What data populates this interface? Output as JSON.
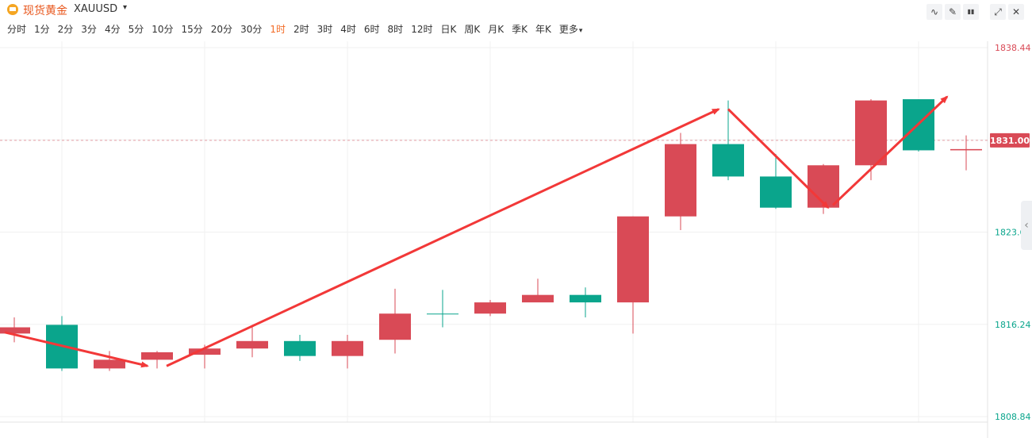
{
  "header": {
    "symbol_name": "现货黄金",
    "symbol_code": "XAUUSD",
    "caret": "▾",
    "icon": "gold-bar-icon"
  },
  "toolbar": {
    "buttons": [
      {
        "name": "indicator-icon",
        "glyph": "∿"
      },
      {
        "name": "draw-tool-icon",
        "glyph": "✎"
      },
      {
        "name": "candle-type-icon",
        "glyph": "▮▮"
      },
      {
        "name": "fullscreen-icon",
        "glyph": "⤢"
      },
      {
        "name": "close-icon",
        "glyph": "✕"
      }
    ]
  },
  "periods": {
    "items": [
      "分时",
      "1分",
      "2分",
      "3分",
      "4分",
      "5分",
      "10分",
      "15分",
      "20分",
      "30分",
      "1时",
      "2时",
      "3时",
      "4时",
      "6时",
      "8时",
      "12时",
      "日K",
      "周K",
      "月K",
      "季K",
      "年K",
      "更多"
    ],
    "active": "1时"
  },
  "chart_data": {
    "type": "candlestick",
    "y_ticks": [
      "1838.44",
      "1823.64",
      "1816.24",
      "1808.84"
    ],
    "ylim": [
      1808.84,
      1838.44
    ],
    "current_price": "1831.00",
    "current_price_value": 1831.0,
    "colors": {
      "up": "#d94a56",
      "down": "#0aa58c",
      "arrow": "#f23838",
      "price_tag": "#d94a56",
      "tick_up": "#d94a56",
      "tick_down": "#0aa58c"
    },
    "candles": [
      {
        "o": 1815.5,
        "c": 1816.0,
        "h": 1816.8,
        "l": 1814.8,
        "dir": "up"
      },
      {
        "o": 1816.2,
        "c": 1812.7,
        "h": 1816.9,
        "l": 1812.5,
        "dir": "down"
      },
      {
        "o": 1812.7,
        "c": 1813.4,
        "h": 1814.1,
        "l": 1812.5,
        "dir": "up"
      },
      {
        "o": 1813.4,
        "c": 1814.0,
        "h": 1814.1,
        "l": 1812.7,
        "dir": "up"
      },
      {
        "o": 1813.8,
        "c": 1814.3,
        "h": 1814.6,
        "l": 1812.7,
        "dir": "up"
      },
      {
        "o": 1814.3,
        "c": 1814.9,
        "h": 1816.0,
        "l": 1813.6,
        "dir": "up"
      },
      {
        "o": 1814.9,
        "c": 1813.7,
        "h": 1815.4,
        "l": 1813.3,
        "dir": "down"
      },
      {
        "o": 1813.7,
        "c": 1814.9,
        "h": 1815.4,
        "l": 1812.7,
        "dir": "up"
      },
      {
        "o": 1815.0,
        "c": 1817.1,
        "h": 1819.1,
        "l": 1813.9,
        "dir": "up"
      },
      {
        "o": 1817.1,
        "c": 1817.1,
        "h": 1819.0,
        "l": 1816.0,
        "dir": "down"
      },
      {
        "o": 1817.1,
        "c": 1818.0,
        "h": 1818.2,
        "l": 1816.9,
        "dir": "up"
      },
      {
        "o": 1818.0,
        "c": 1818.6,
        "h": 1819.9,
        "l": 1818.1,
        "dir": "up"
      },
      {
        "o": 1818.6,
        "c": 1818.0,
        "h": 1819.2,
        "l": 1816.8,
        "dir": "down"
      },
      {
        "o": 1818.0,
        "c": 1824.9,
        "h": 1824.9,
        "l": 1815.5,
        "dir": "up"
      },
      {
        "o": 1824.9,
        "c": 1830.7,
        "h": 1831.6,
        "l": 1823.8,
        "dir": "up"
      },
      {
        "o": 1830.7,
        "c": 1828.1,
        "h": 1834.2,
        "l": 1827.8,
        "dir": "down"
      },
      {
        "o": 1828.1,
        "c": 1825.6,
        "h": 1829.9,
        "l": 1825.5,
        "dir": "down"
      },
      {
        "o": 1825.6,
        "c": 1829.0,
        "h": 1829.1,
        "l": 1825.1,
        "dir": "up"
      },
      {
        "o": 1829.0,
        "c": 1834.2,
        "h": 1834.3,
        "l": 1827.8,
        "dir": "up"
      },
      {
        "o": 1834.3,
        "c": 1830.2,
        "h": 1834.3,
        "l": 1830.1,
        "dir": "down"
      },
      {
        "o": 1830.2,
        "c": 1830.3,
        "h": 1831.4,
        "l": 1828.6,
        "dir": "up"
      }
    ],
    "trend_arrows": [
      {
        "from": [
          -0.2,
          1815.6
        ],
        "to": [
          2.8,
          1812.9
        ],
        "head": true
      },
      {
        "from": [
          3.2,
          1812.9
        ],
        "to": [
          14.8,
          1833.5
        ],
        "head": true
      },
      {
        "from": [
          15.0,
          1833.5
        ],
        "to": [
          17.1,
          1825.6
        ],
        "head": true
      },
      {
        "from": [
          17.2,
          1825.8
        ],
        "to": [
          19.6,
          1834.5
        ],
        "head": true
      }
    ]
  }
}
